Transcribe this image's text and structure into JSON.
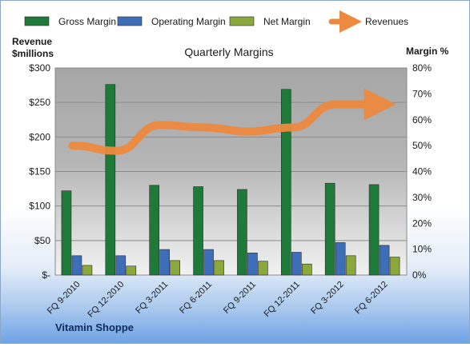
{
  "chart_data": {
    "type": "bar",
    "title": "Quarterly Margins",
    "company": "Vitamin Shoppe",
    "y_left_label": [
      "Revenue",
      "$millions"
    ],
    "y_right_label": "Margin %",
    "ylim_left": [
      0,
      300
    ],
    "ylim_right": [
      0,
      80
    ],
    "left_ticks": [
      "$-",
      "$50",
      "$100",
      "$150",
      "$200",
      "$250",
      "$300"
    ],
    "right_ticks": [
      "0%",
      "10%",
      "20%",
      "30%",
      "40%",
      "50%",
      "60%",
      "70%",
      "80%"
    ],
    "categories": [
      "FQ 9-2010",
      "FQ 12-2010",
      "FQ 3-2011",
      "FQ 6-2011",
      "FQ 9-2011",
      "FQ 12-2011",
      "FQ 3-2012",
      "FQ 6-2012"
    ],
    "series": [
      {
        "name": "Gross Margin",
        "type": "bar",
        "axis": "left",
        "color": "#1f7a3a",
        "values": [
          122,
          276,
          130,
          128,
          124,
          269,
          133,
          131
        ]
      },
      {
        "name": "Operating Margin",
        "type": "bar",
        "axis": "left",
        "color": "#3f6eb8",
        "values": [
          28,
          28,
          37,
          37,
          32,
          33,
          47,
          43
        ]
      },
      {
        "name": "Net Margin",
        "type": "bar",
        "axis": "left",
        "color": "#8aa83c",
        "values": [
          14,
          13,
          21,
          21,
          20,
          16,
          28,
          26
        ]
      },
      {
        "name": "Revenues",
        "type": "line",
        "axis": "right",
        "color": "#ed8a3f",
        "values": [
          50,
          48,
          58,
          57,
          55.5,
          57,
          66,
          66
        ]
      }
    ],
    "legend_position": "top",
    "grid": true
  }
}
